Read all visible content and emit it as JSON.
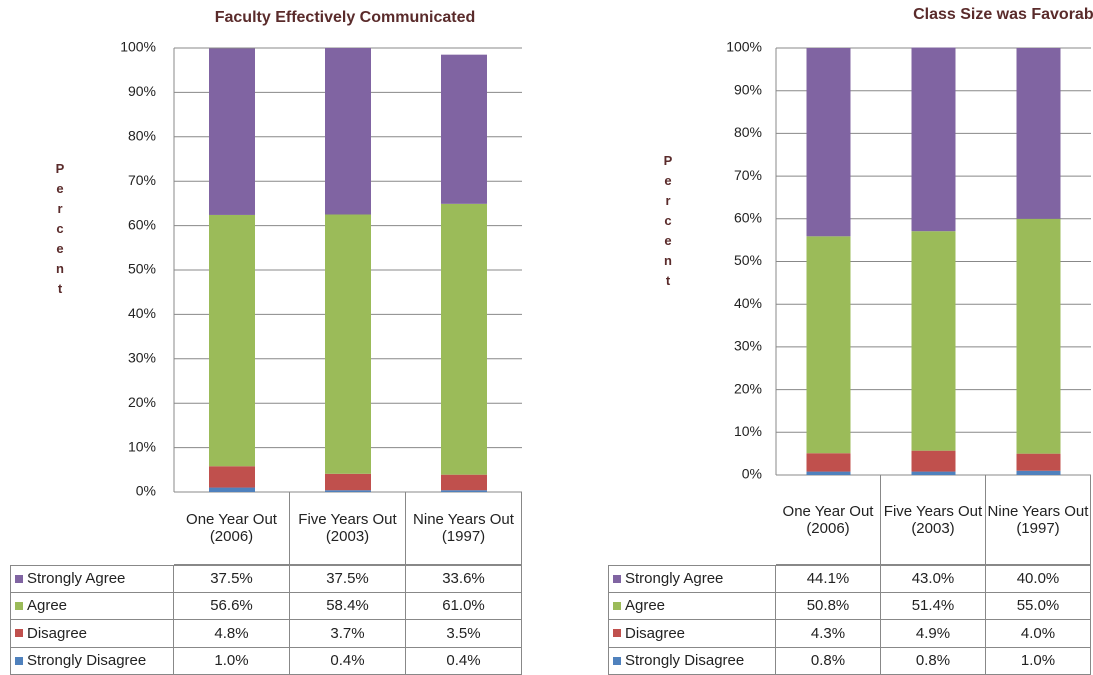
{
  "chart_data": [
    {
      "type": "bar",
      "stacked": true,
      "title": "Faculty Effectively Communicated",
      "y_label": "Percent",
      "categories": [
        "One Year Out (2006)",
        "Five Years Out (2003)",
        "Nine Years Out (1997)"
      ],
      "series": [
        {
          "name": "Strongly Agree",
          "color": "#8064a2",
          "values": [
            37.5,
            37.5,
            33.6
          ],
          "value_labels": [
            "37.5%",
            "37.5%",
            "33.6%"
          ]
        },
        {
          "name": "Agree",
          "color": "#9bbb59",
          "values": [
            56.6,
            58.4,
            61.0
          ],
          "value_labels": [
            "56.6%",
            "58.4%",
            "61.0%"
          ]
        },
        {
          "name": "Disagree",
          "color": "#c0504d",
          "values": [
            4.8,
            3.7,
            3.5
          ],
          "value_labels": [
            "4.8%",
            "3.7%",
            "3.5%"
          ]
        },
        {
          "name": "Strongly Disagree",
          "color": "#4f81bd",
          "values": [
            1.0,
            0.4,
            0.4
          ],
          "value_labels": [
            "1.0%",
            "0.4%",
            "0.4%"
          ]
        }
      ],
      "ylim": [
        0,
        100
      ],
      "yticks": [
        {
          "value": 0,
          "label": "0%"
        },
        {
          "value": 10,
          "label": "10%"
        },
        {
          "value": 20,
          "label": "20%"
        },
        {
          "value": 30,
          "label": "30%"
        },
        {
          "value": 40,
          "label": "40%"
        },
        {
          "value": 50,
          "label": "50%"
        },
        {
          "value": 60,
          "label": "60%"
        },
        {
          "value": 70,
          "label": "70%"
        },
        {
          "value": 80,
          "label": "80%"
        },
        {
          "value": 90,
          "label": "90%"
        },
        {
          "value": 100,
          "label": "100%"
        }
      ],
      "grid": true
    },
    {
      "type": "bar",
      "stacked": true,
      "title": "Class Size was Favorable",
      "y_label": "Percent",
      "categories": [
        "One Year Out (2006)",
        "Five Years Out (2003)",
        "Nine Years Out (1997)"
      ],
      "series": [
        {
          "name": "Strongly Agree",
          "color": "#8064a2",
          "values": [
            44.1,
            43.0,
            40.0
          ],
          "value_labels": [
            "44.1%",
            "43.0%",
            "40.0%"
          ]
        },
        {
          "name": "Agree",
          "color": "#9bbb59",
          "values": [
            50.8,
            51.4,
            55.0
          ],
          "value_labels": [
            "50.8%",
            "51.4%",
            "55.0%"
          ]
        },
        {
          "name": "Disagree",
          "color": "#c0504d",
          "values": [
            4.3,
            4.9,
            4.0
          ],
          "value_labels": [
            "4.3%",
            "4.9%",
            "4.0%"
          ]
        },
        {
          "name": "Strongly Disagree",
          "color": "#4f81bd",
          "values": [
            0.8,
            0.8,
            1.0
          ],
          "value_labels": [
            "0.8%",
            "0.8%",
            "1.0%"
          ]
        }
      ],
      "ylim": [
        0,
        100
      ],
      "yticks": [
        {
          "value": 0,
          "label": "0%"
        },
        {
          "value": 10,
          "label": "10%"
        },
        {
          "value": 20,
          "label": "20%"
        },
        {
          "value": 30,
          "label": "30%"
        },
        {
          "value": 40,
          "label": "40%"
        },
        {
          "value": 50,
          "label": "50%"
        },
        {
          "value": 60,
          "label": "60%"
        },
        {
          "value": 70,
          "label": "70%"
        },
        {
          "value": 80,
          "label": "80%"
        },
        {
          "value": 90,
          "label": "90%"
        },
        {
          "value": 100,
          "label": "100%"
        }
      ],
      "grid": true
    }
  ]
}
